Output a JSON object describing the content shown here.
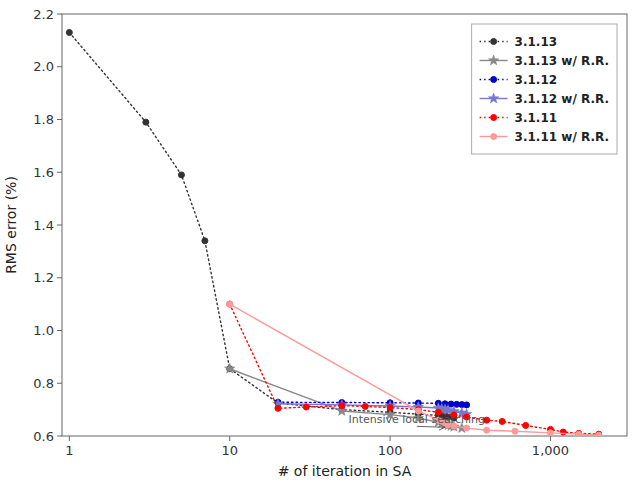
{
  "chart_data": {
    "type": "line",
    "xlabel": "# of iteration in SA",
    "ylabel": "RMS error (%)",
    "log": "x",
    "grid": false,
    "legend": "upper right",
    "xlim": [
      0.9,
      3000
    ],
    "xticks": [
      1,
      10,
      100,
      {
        "value": 1000,
        "label": "1,000"
      }
    ],
    "ylim": [
      0.6,
      2.2
    ],
    "yticks": [
      0.6,
      0.8,
      {
        "value": 1.0,
        "label": "1.0"
      },
      1.2,
      1.4,
      1.6,
      1.8,
      {
        "value": 2.0,
        "label": "2.0"
      },
      2.2
    ],
    "series": [
      {
        "name": "3.1.13",
        "color": "#333333",
        "line_style": "dotted",
        "marker": "circle",
        "x": [
          1,
          3,
          5,
          7,
          10,
          20,
          50,
          100,
          150,
          200,
          210,
          220,
          230,
          250
        ],
        "values": [
          2.13,
          1.79,
          1.59,
          1.34,
          0.855,
          0.725,
          0.7,
          0.69,
          0.683,
          0.678,
          0.675,
          0.673,
          0.671,
          0.668
        ]
      },
      {
        "name": "3.1.13 w/ R.R.",
        "color": "#888888",
        "line_style": "solid",
        "marker": "star",
        "x": [
          10,
          50,
          100,
          150,
          200,
          210,
          220,
          230,
          240,
          250,
          280
        ],
        "values": [
          0.855,
          0.695,
          0.681,
          0.668,
          0.652,
          0.648,
          0.644,
          0.641,
          0.638,
          0.635,
          0.63
        ]
      },
      {
        "name": "3.1.12",
        "color": "#0000CC",
        "line_style": "dotted",
        "marker": "circle",
        "x": [
          20,
          50,
          100,
          150,
          200,
          220,
          240,
          260,
          280,
          300
        ],
        "values": [
          0.728,
          0.727,
          0.726,
          0.725,
          0.724,
          0.722,
          0.721,
          0.72,
          0.719,
          0.718
        ]
      },
      {
        "name": "3.1.12 w/ R.R.",
        "color": "#7777CC",
        "line_style": "solid",
        "marker": "star",
        "x": [
          20,
          50,
          100,
          150,
          200,
          210,
          220,
          230,
          250,
          280,
          300
        ],
        "values": [
          0.722,
          0.718,
          0.714,
          0.71,
          0.706,
          0.703,
          0.701,
          0.698,
          0.693,
          0.688,
          0.683
        ]
      },
      {
        "name": "3.1.11",
        "color": "#FF0000",
        "line_style": "dotted",
        "marker": "circle",
        "x": [
          10,
          20,
          30,
          50,
          70,
          100,
          150,
          200,
          250,
          300,
          400,
          500,
          700,
          1000,
          1200,
          1500,
          2000
        ],
        "values": [
          1.1,
          0.705,
          0.71,
          0.715,
          0.712,
          0.708,
          0.7,
          0.69,
          0.68,
          0.672,
          0.66,
          0.655,
          0.64,
          0.625,
          0.615,
          0.61,
          0.607
        ]
      },
      {
        "name": "3.1.11 w/ R.R.",
        "color": "#FF9999",
        "line_style": "solid",
        "marker": "circle",
        "x": [
          10,
          150,
          200,
          210,
          220,
          230,
          250,
          300,
          400,
          600,
          1000,
          1500,
          2000
        ],
        "values": [
          1.1,
          0.695,
          0.66,
          0.65,
          0.648,
          0.643,
          0.638,
          0.63,
          0.622,
          0.618,
          0.612,
          0.607,
          0.603
        ]
      }
    ],
    "annotations": [
      {
        "text": "Intensive local searching",
        "xy": [
          220,
          0.633
        ],
        "xytext": [
          55,
          0.648
        ]
      }
    ]
  }
}
